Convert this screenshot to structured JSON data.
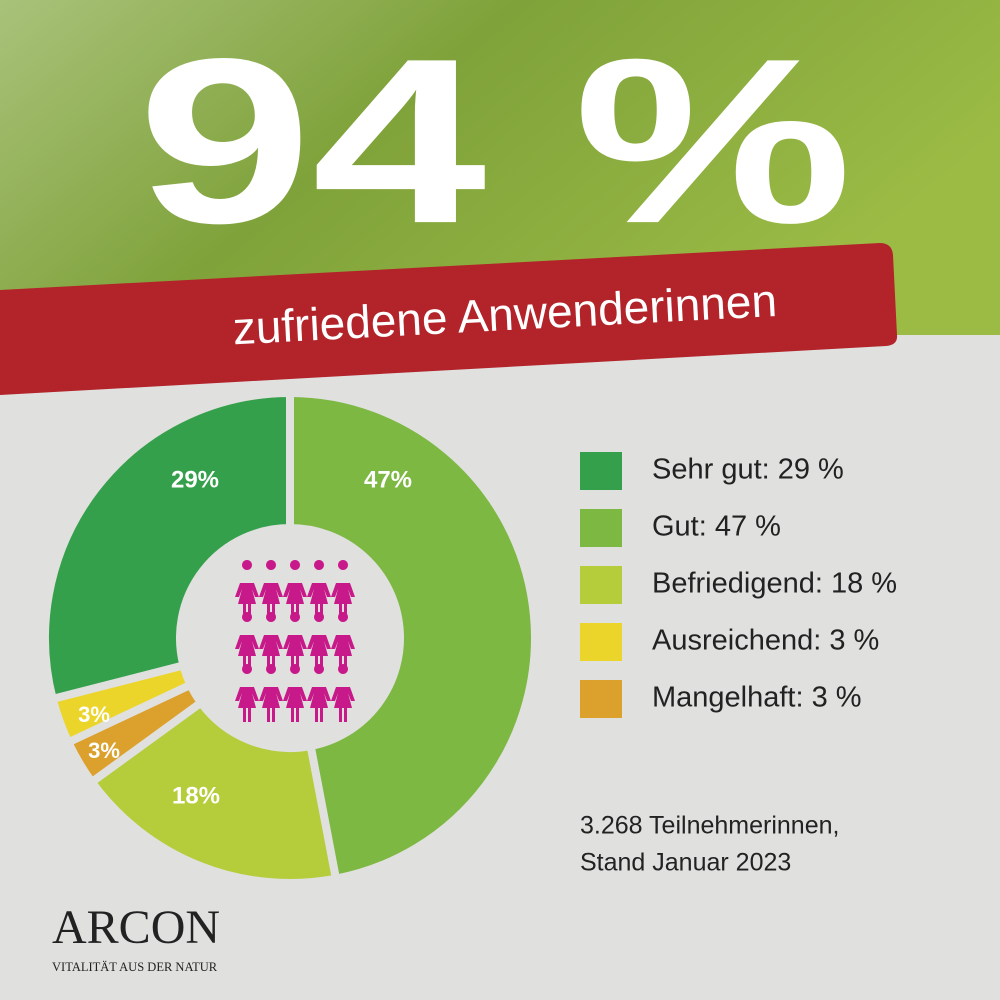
{
  "headline": "94 %",
  "banner": "zufriedene Anwenderinnen",
  "chart_data": {
    "type": "pie",
    "categories": [
      "Sehr gut: 29 %",
      "Gut: 47 %",
      "Befriedigend: 18 %",
      "Ausreichend: 3 %",
      "Mangelhaft: 3 %"
    ],
    "values": [
      29,
      47,
      18,
      3,
      3
    ],
    "value_labels": [
      "29%",
      "47%",
      "18%",
      "3%",
      "3%"
    ],
    "colors": [
      "#35a04b",
      "#7db843",
      "#b5cd3a",
      "#ecd52a",
      "#dca02c"
    ],
    "donut": true
  },
  "note": [
    "3.268  Teilnehmerinnen,",
    "Stand Januar 2023"
  ],
  "logo": {
    "name": "ARCON",
    "tagline": "VITALITÄT AUS DER NATUR"
  }
}
